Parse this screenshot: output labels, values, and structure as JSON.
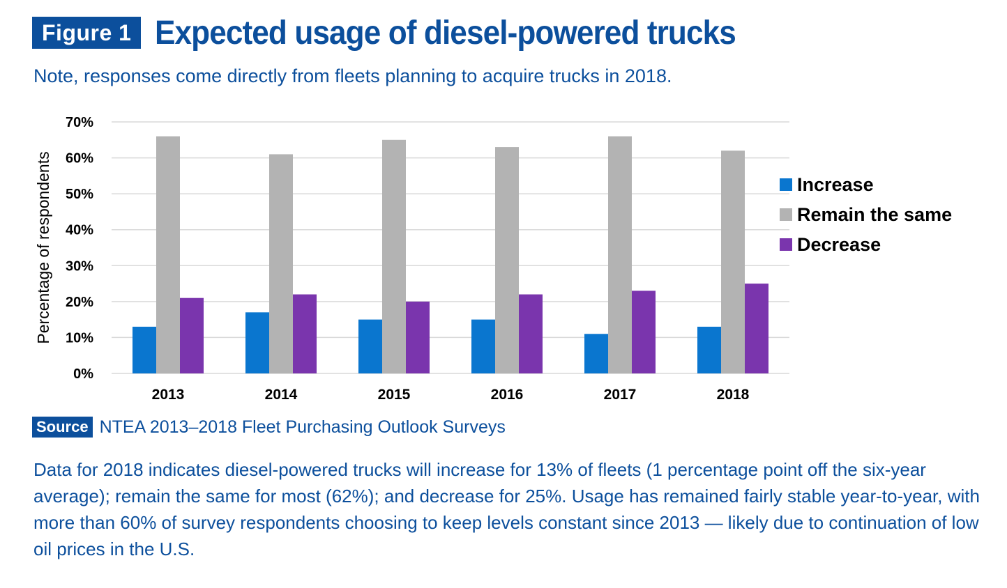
{
  "header": {
    "badge": "Figure 1",
    "title": "Expected usage of diesel-powered trucks",
    "note": "Note, responses come directly from fleets planning to acquire trucks in 2018."
  },
  "chart_data": {
    "type": "bar",
    "categories": [
      "2013",
      "2014",
      "2015",
      "2016",
      "2017",
      "2018"
    ],
    "series": [
      {
        "name": "Increase",
        "color": "#0a76cf",
        "values": [
          13,
          17,
          15,
          15,
          11,
          13
        ]
      },
      {
        "name": "Remain the same",
        "color": "#b3b3b3",
        "values": [
          66,
          61,
          65,
          63,
          66,
          62
        ]
      },
      {
        "name": "Decrease",
        "color": "#7a35ad",
        "values": [
          21,
          22,
          20,
          22,
          23,
          25
        ]
      }
    ],
    "ylabel": "Percentage of respondents",
    "ylim": [
      0,
      70
    ],
    "yticks": [
      "0%",
      "10%",
      "20%",
      "30%",
      "40%",
      "50%",
      "60%",
      "70%"
    ],
    "grid": true,
    "legend_position": "right"
  },
  "source": {
    "badge": "Source",
    "text": "NTEA 2013–2018 Fleet Purchasing Outlook Surveys"
  },
  "description": "Data for 2018 indicates diesel-powered trucks will increase for 13% of fleets (1 percentage point off the six-year average); remain the same for most (62%); and decrease for 25%. Usage has remained fairly stable year-to-year, with more than 60% of survey respondents choosing to keep levels constant since 2013 — likely due to continuation of low oil prices in the U.S."
}
